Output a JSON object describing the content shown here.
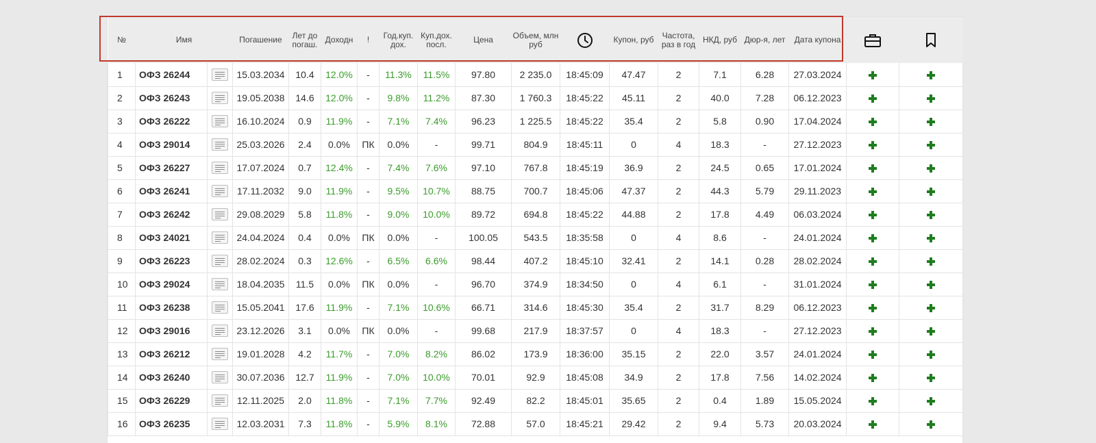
{
  "columns": {
    "num": "№",
    "name": "Имя",
    "maturity": "Погашение",
    "years": "Лет до погаш.",
    "yield": "Доходн",
    "flag": "!",
    "annual_coupon": "Год.куп. дох.",
    "coupon_last": "Куп.дох. посл.",
    "price": "Цена",
    "volume": "Объем, млн руб",
    "coupon_rub": "Купон, руб",
    "frequency": "Частота, раз в год",
    "nkd": "НКД, руб",
    "duration": "Дюр-я, лет",
    "coupon_date": "Дата купона"
  },
  "icons": {
    "time": "clock-icon",
    "portfolio": "briefcase-icon",
    "favorite": "bookmark-icon",
    "description": "document-icon",
    "add": "plus-icon"
  },
  "colors": {
    "positive": "#3a9b2a",
    "add_button": "#1e7d1e",
    "highlight": "#c0392b"
  },
  "rows": [
    {
      "num": "1",
      "name": "ОФЗ 26244",
      "maturity": "15.03.2034",
      "years": "10.4",
      "yield": "12.0%",
      "flag": "-",
      "annual": "11.3%",
      "last": "11.5%",
      "price": "97.80",
      "volume": "2 235.0",
      "time": "18:45:09",
      "coupon": "47.47",
      "freq": "2",
      "nkd": "7.1",
      "dur": "6.28",
      "date": "27.03.2024"
    },
    {
      "num": "2",
      "name": "ОФЗ 26243",
      "maturity": "19.05.2038",
      "years": "14.6",
      "yield": "12.0%",
      "flag": "-",
      "annual": "9.8%",
      "last": "11.2%",
      "price": "87.30",
      "volume": "1 760.3",
      "time": "18:45:22",
      "coupon": "45.11",
      "freq": "2",
      "nkd": "40.0",
      "dur": "7.28",
      "date": "06.12.2023"
    },
    {
      "num": "3",
      "name": "ОФЗ 26222",
      "maturity": "16.10.2024",
      "years": "0.9",
      "yield": "11.9%",
      "flag": "-",
      "annual": "7.1%",
      "last": "7.4%",
      "price": "96.23",
      "volume": "1 225.5",
      "time": "18:45:22",
      "coupon": "35.4",
      "freq": "2",
      "nkd": "5.8",
      "dur": "0.90",
      "date": "17.04.2024"
    },
    {
      "num": "4",
      "name": "ОФЗ 29014",
      "maturity": "25.03.2026",
      "years": "2.4",
      "yield": "0.0%",
      "flag": "ПК",
      "annual": "0.0%",
      "last": "-",
      "price": "99.71",
      "volume": "804.9",
      "time": "18:45:11",
      "coupon": "0",
      "freq": "4",
      "nkd": "18.3",
      "dur": "-",
      "date": "27.12.2023"
    },
    {
      "num": "5",
      "name": "ОФЗ 26227",
      "maturity": "17.07.2024",
      "years": "0.7",
      "yield": "12.4%",
      "flag": "-",
      "annual": "7.4%",
      "last": "7.6%",
      "price": "97.10",
      "volume": "767.8",
      "time": "18:45:19",
      "coupon": "36.9",
      "freq": "2",
      "nkd": "24.5",
      "dur": "0.65",
      "date": "17.01.2024"
    },
    {
      "num": "6",
      "name": "ОФЗ 26241",
      "maturity": "17.11.2032",
      "years": "9.0",
      "yield": "11.9%",
      "flag": "-",
      "annual": "9.5%",
      "last": "10.7%",
      "price": "88.75",
      "volume": "700.7",
      "time": "18:45:06",
      "coupon": "47.37",
      "freq": "2",
      "nkd": "44.3",
      "dur": "5.79",
      "date": "29.11.2023"
    },
    {
      "num": "7",
      "name": "ОФЗ 26242",
      "maturity": "29.08.2029",
      "years": "5.8",
      "yield": "11.8%",
      "flag": "-",
      "annual": "9.0%",
      "last": "10.0%",
      "price": "89.72",
      "volume": "694.8",
      "time": "18:45:22",
      "coupon": "44.88",
      "freq": "2",
      "nkd": "17.8",
      "dur": "4.49",
      "date": "06.03.2024"
    },
    {
      "num": "8",
      "name": "ОФЗ 24021",
      "maturity": "24.04.2024",
      "years": "0.4",
      "yield": "0.0%",
      "flag": "ПК",
      "annual": "0.0%",
      "last": "-",
      "price": "100.05",
      "volume": "543.5",
      "time": "18:35:58",
      "coupon": "0",
      "freq": "4",
      "nkd": "8.6",
      "dur": "-",
      "date": "24.01.2024"
    },
    {
      "num": "9",
      "name": "ОФЗ 26223",
      "maturity": "28.02.2024",
      "years": "0.3",
      "yield": "12.6%",
      "flag": "-",
      "annual": "6.5%",
      "last": "6.6%",
      "price": "98.44",
      "volume": "407.2",
      "time": "18:45:10",
      "coupon": "32.41",
      "freq": "2",
      "nkd": "14.1",
      "dur": "0.28",
      "date": "28.02.2024"
    },
    {
      "num": "10",
      "name": "ОФЗ 29024",
      "maturity": "18.04.2035",
      "years": "11.5",
      "yield": "0.0%",
      "flag": "ПК",
      "annual": "0.0%",
      "last": "-",
      "price": "96.70",
      "volume": "374.9",
      "time": "18:34:50",
      "coupon": "0",
      "freq": "4",
      "nkd": "6.1",
      "dur": "-",
      "date": "31.01.2024"
    },
    {
      "num": "11",
      "name": "ОФЗ 26238",
      "maturity": "15.05.2041",
      "years": "17.6",
      "yield": "11.9%",
      "flag": "-",
      "annual": "7.1%",
      "last": "10.6%",
      "price": "66.71",
      "volume": "314.6",
      "time": "18:45:30",
      "coupon": "35.4",
      "freq": "2",
      "nkd": "31.7",
      "dur": "8.29",
      "date": "06.12.2023"
    },
    {
      "num": "12",
      "name": "ОФЗ 29016",
      "maturity": "23.12.2026",
      "years": "3.1",
      "yield": "0.0%",
      "flag": "ПК",
      "annual": "0.0%",
      "last": "-",
      "price": "99.68",
      "volume": "217.9",
      "time": "18:37:57",
      "coupon": "0",
      "freq": "4",
      "nkd": "18.3",
      "dur": "-",
      "date": "27.12.2023"
    },
    {
      "num": "13",
      "name": "ОФЗ 26212",
      "maturity": "19.01.2028",
      "years": "4.2",
      "yield": "11.7%",
      "flag": "-",
      "annual": "7.0%",
      "last": "8.2%",
      "price": "86.02",
      "volume": "173.9",
      "time": "18:36:00",
      "coupon": "35.15",
      "freq": "2",
      "nkd": "22.0",
      "dur": "3.57",
      "date": "24.01.2024"
    },
    {
      "num": "14",
      "name": "ОФЗ 26240",
      "maturity": "30.07.2036",
      "years": "12.7",
      "yield": "11.9%",
      "flag": "-",
      "annual": "7.0%",
      "last": "10.0%",
      "price": "70.01",
      "volume": "92.9",
      "time": "18:45:08",
      "coupon": "34.9",
      "freq": "2",
      "nkd": "17.8",
      "dur": "7.56",
      "date": "14.02.2024"
    },
    {
      "num": "15",
      "name": "ОФЗ 26229",
      "maturity": "12.11.2025",
      "years": "2.0",
      "yield": "11.8%",
      "flag": "-",
      "annual": "7.1%",
      "last": "7.7%",
      "price": "92.49",
      "volume": "82.2",
      "time": "18:45:01",
      "coupon": "35.65",
      "freq": "2",
      "nkd": "0.4",
      "dur": "1.89",
      "date": "15.05.2024"
    },
    {
      "num": "16",
      "name": "ОФЗ 26235",
      "maturity": "12.03.2031",
      "years": "7.3",
      "yield": "11.8%",
      "flag": "-",
      "annual": "5.9%",
      "last": "8.1%",
      "price": "72.88",
      "volume": "57.0",
      "time": "18:45:21",
      "coupon": "29.42",
      "freq": "2",
      "nkd": "9.4",
      "dur": "5.73",
      "date": "20.03.2024"
    }
  ]
}
